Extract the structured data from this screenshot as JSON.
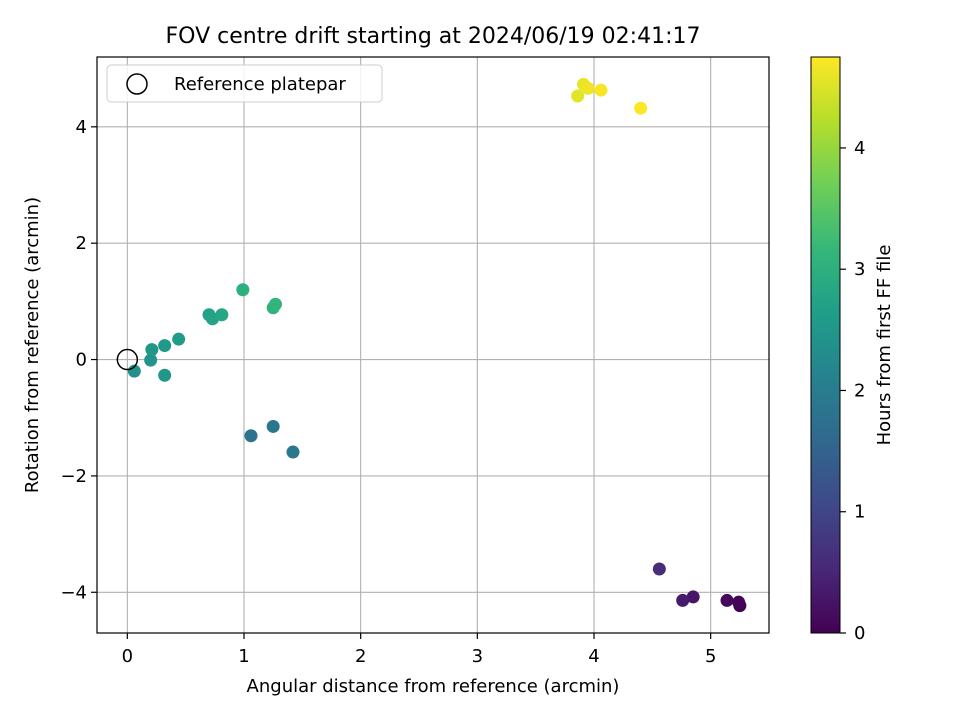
{
  "chart_data": {
    "type": "scatter",
    "title": "FOV centre drift starting at 2024/06/19 02:41:17",
    "xlabel": "Angular distance from reference (arcmin)",
    "ylabel": "Rotation from reference (arcmin)",
    "xlim": [
      -0.26,
      5.5
    ],
    "ylim": [
      -4.7,
      5.2
    ],
    "xticks": [
      0,
      1,
      2,
      3,
      4,
      5
    ],
    "yticks": [
      -4,
      -2,
      0,
      2,
      4
    ],
    "xtick_labels": [
      "0",
      "1",
      "2",
      "3",
      "4",
      "5"
    ],
    "ytick_labels": [
      "−4",
      "−2",
      "0",
      "2",
      "4"
    ],
    "grid": true,
    "legend": {
      "location": "upper-left",
      "label": "Reference platepar"
    },
    "reference_point": {
      "x": 0,
      "y": 0
    },
    "colorbar": {
      "label": "Hours from first FF file",
      "colormap": "viridis",
      "range": [
        0,
        4.75
      ],
      "ticks": [
        0,
        1,
        2,
        3,
        4
      ],
      "tick_labels": [
        "0",
        "1",
        "2",
        "3",
        "4"
      ]
    },
    "points": [
      {
        "x": 5.25,
        "y": -4.23,
        "c": 0.0
      },
      {
        "x": 5.24,
        "y": -4.17,
        "c": 0.05
      },
      {
        "x": 5.14,
        "y": -4.14,
        "c": 0.1
      },
      {
        "x": 4.85,
        "y": -4.08,
        "c": 0.3
      },
      {
        "x": 4.76,
        "y": -4.14,
        "c": 0.35
      },
      {
        "x": 4.56,
        "y": -3.6,
        "c": 0.6
      },
      {
        "x": 1.06,
        "y": -1.31,
        "c": 1.8
      },
      {
        "x": 1.25,
        "y": -1.15,
        "c": 1.85
      },
      {
        "x": 1.42,
        "y": -1.59,
        "c": 1.9
      },
      {
        "x": 0.06,
        "y": -0.2,
        "c": 2.4
      },
      {
        "x": 0.2,
        "y": -0.01,
        "c": 2.45
      },
      {
        "x": 0.32,
        "y": -0.27,
        "c": 2.5
      },
      {
        "x": 0.21,
        "y": 0.17,
        "c": 2.5
      },
      {
        "x": 0.32,
        "y": 0.24,
        "c": 2.55
      },
      {
        "x": 0.44,
        "y": 0.35,
        "c": 2.6
      },
      {
        "x": 0.7,
        "y": 0.77,
        "c": 2.7
      },
      {
        "x": 0.73,
        "y": 0.7,
        "c": 2.75
      },
      {
        "x": 0.81,
        "y": 0.77,
        "c": 2.8
      },
      {
        "x": 0.99,
        "y": 1.2,
        "c": 3.0
      },
      {
        "x": 1.25,
        "y": 0.89,
        "c": 3.05
      },
      {
        "x": 1.27,
        "y": 0.95,
        "c": 3.1
      },
      {
        "x": 3.86,
        "y": 4.53,
        "c": 4.55
      },
      {
        "x": 3.91,
        "y": 4.73,
        "c": 4.6
      },
      {
        "x": 3.95,
        "y": 4.66,
        "c": 4.65
      },
      {
        "x": 4.06,
        "y": 4.63,
        "c": 4.7
      },
      {
        "x": 4.4,
        "y": 4.32,
        "c": 4.75
      }
    ]
  }
}
